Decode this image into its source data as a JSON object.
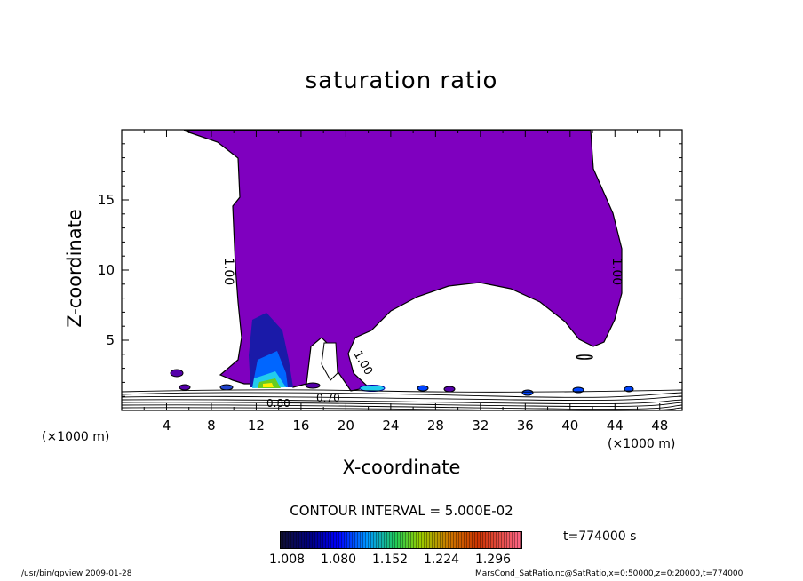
{
  "chart_data": {
    "type": "heatmap",
    "title": "saturation ratio",
    "xlabel": "X-coordinate",
    "ylabel": "Z-coordinate",
    "x_unit_label": "(×1000 m)",
    "xlim": [
      0,
      50
    ],
    "ylim": [
      0,
      20
    ],
    "x_ticks": [
      4,
      8,
      12,
      16,
      20,
      24,
      28,
      32,
      36,
      40,
      44,
      48
    ],
    "y_ticks": [
      5,
      10,
      15
    ],
    "contour_interval_label": "CONTOUR INTERVAL = 5.000E-02",
    "contour_labels": [
      "1.00",
      "1.00",
      "1.00",
      "0.80",
      "0.70"
    ],
    "colorbar_ticks": [
      "1.008",
      "1.080",
      "1.152",
      "1.224",
      "1.296"
    ],
    "time_label": "t=774000 s",
    "fill_colors": {
      "supersaturated": "#7f00bf",
      "outline": "#000000"
    }
  },
  "footer": {
    "left": "/usr/bin/gpview  2009-01-28",
    "right": "MarsCond_SatRatio.nc@SatRatio,x=0:50000,z=0:20000,t=774000"
  }
}
